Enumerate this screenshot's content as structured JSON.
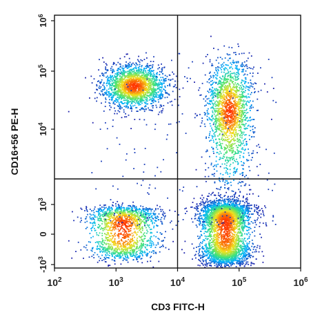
{
  "chart_data": {
    "type": "scatter",
    "subtype": "flow-cytometry density dot plot with quadrant gates",
    "title": "",
    "xlabel": "CD3 FITC-H",
    "ylabel": "CD16+56 PE-H",
    "x_scale": "log",
    "y_scale": "biexponential",
    "xlim": [
      100,
      1000000
    ],
    "ylim": [
      -1000,
      1000000
    ],
    "x_ticks": [
      {
        "value": 100,
        "base": "10",
        "exp": "2"
      },
      {
        "value": 1000,
        "base": "10",
        "exp": "3"
      },
      {
        "value": 10000,
        "base": "10",
        "exp": "4"
      },
      {
        "value": 100000,
        "base": "10",
        "exp": "5"
      },
      {
        "value": 1000000,
        "base": "10",
        "exp": "6"
      }
    ],
    "y_ticks": [
      {
        "value": -1000,
        "label": "-10",
        "exp": "3"
      },
      {
        "value": 0,
        "label": "0",
        "exp": ""
      },
      {
        "value": 1000,
        "label": "10",
        "exp": "3"
      },
      {
        "value": 10000,
        "label": "10",
        "exp": "4"
      },
      {
        "value": 100000,
        "label": "10",
        "exp": "5"
      },
      {
        "value": 1000000,
        "label": "10",
        "exp": "6"
      }
    ],
    "quadrant_gates": {
      "x": 10000,
      "y": 3000
    },
    "populations": [
      {
        "x_center": 2000,
        "y_center": 55000,
        "x_spread_decades": 0.25,
        "y_spread_decades": 0.18,
        "density": 0.22
      },
      {
        "x_center": 1300,
        "y_center": 100,
        "x_spread_decades": 0.28,
        "y_spread": 350,
        "density": 0.18
      },
      {
        "x_center": 60000,
        "y_center": 120,
        "x_spread_decades": 0.2,
        "y_spread": 500,
        "density": 0.4
      },
      {
        "x_center": 70000,
        "y_center": 20000,
        "x_spread_decades": 0.18,
        "y_spread_decades": 0.45,
        "density": 0.2
      }
    ],
    "color_scale": [
      "#1a1aa8",
      "#00b4ff",
      "#3fe37a",
      "#f2e11c",
      "#ff3300"
    ],
    "grid": false,
    "legend": "none"
  }
}
